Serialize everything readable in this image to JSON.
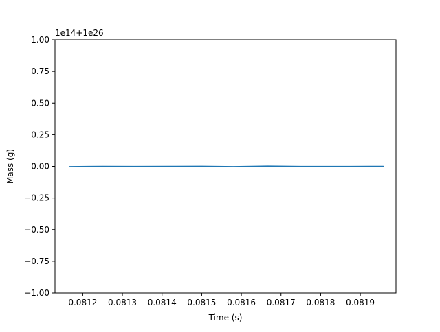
{
  "chart_data": {
    "type": "line",
    "title": "",
    "xlabel": "Time (s)",
    "ylabel": "Mass (g)",
    "y_offset_label": "1e14+1e26",
    "xlim": [
      0.08113,
      0.08199
    ],
    "ylim": [
      -1.0,
      1.0
    ],
    "x_ticks": [
      0.0812,
      0.0813,
      0.0814,
      0.0815,
      0.0816,
      0.0817,
      0.0818,
      0.0819
    ],
    "x_tick_labels": [
      "0.0812",
      "0.0813",
      "0.0814",
      "0.0815",
      "0.0816",
      "0.0817",
      "0.0818",
      "0.0819"
    ],
    "y_ticks": [
      -1.0,
      -0.75,
      -0.5,
      -0.25,
      0.0,
      0.25,
      0.5,
      0.75,
      1.0
    ],
    "y_tick_labels": [
      "−1.00",
      "−0.75",
      "−0.50",
      "−0.25",
      "0.00",
      "0.25",
      "0.50",
      "0.75",
      "1.00"
    ],
    "grid": false,
    "series": [
      {
        "color": "#1f77b4",
        "x": [
          0.081167,
          0.08125,
          0.08133,
          0.08142,
          0.0815,
          0.08158,
          0.081667,
          0.08175,
          0.08183,
          0.08192,
          0.081958
        ],
        "y": [
          -0.002,
          0.0,
          -0.001,
          0.0,
          0.001,
          -0.002,
          0.002,
          -0.001,
          -0.001,
          0.0,
          0.0
        ]
      }
    ]
  }
}
